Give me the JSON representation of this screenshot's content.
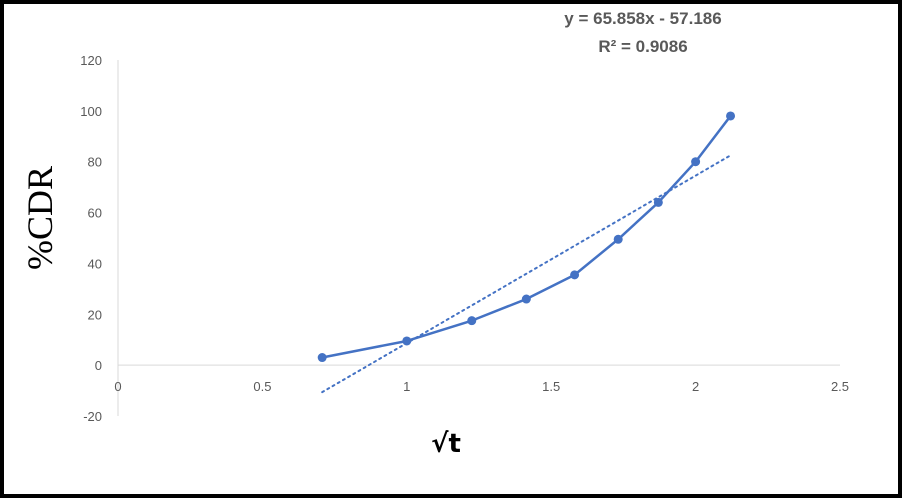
{
  "chart_data": {
    "type": "scatter",
    "title": "",
    "xlabel": "√t",
    "ylabel": "%CDR",
    "xlim": [
      0,
      2.5
    ],
    "ylim": [
      -20,
      120
    ],
    "x_ticks": [
      "0",
      "0.5",
      "1",
      "1.5",
      "2",
      "2.5"
    ],
    "y_ticks": [
      "120",
      "100",
      "80",
      "60",
      "40",
      "20",
      "0",
      "-20"
    ],
    "grid": false,
    "legend": "none",
    "series": [
      {
        "color": "#4472C4",
        "mode": "markers+lines",
        "x": [
          0.707,
          1.0,
          1.225,
          1.414,
          1.581,
          1.732,
          1.871,
          2.0,
          2.121
        ],
        "y": [
          3,
          9.5,
          17.5,
          26,
          35.5,
          49.5,
          64,
          80,
          98
        ]
      }
    ],
    "trendline": {
      "type": "linear",
      "style": "dotted",
      "color": "#4472C4",
      "slope": 65.858,
      "intercept": -57.186,
      "x_range": [
        0.707,
        2.121
      ],
      "equation_label": "y = 65.858x - 57.186",
      "r2_label": "R² = 0.9086"
    }
  }
}
